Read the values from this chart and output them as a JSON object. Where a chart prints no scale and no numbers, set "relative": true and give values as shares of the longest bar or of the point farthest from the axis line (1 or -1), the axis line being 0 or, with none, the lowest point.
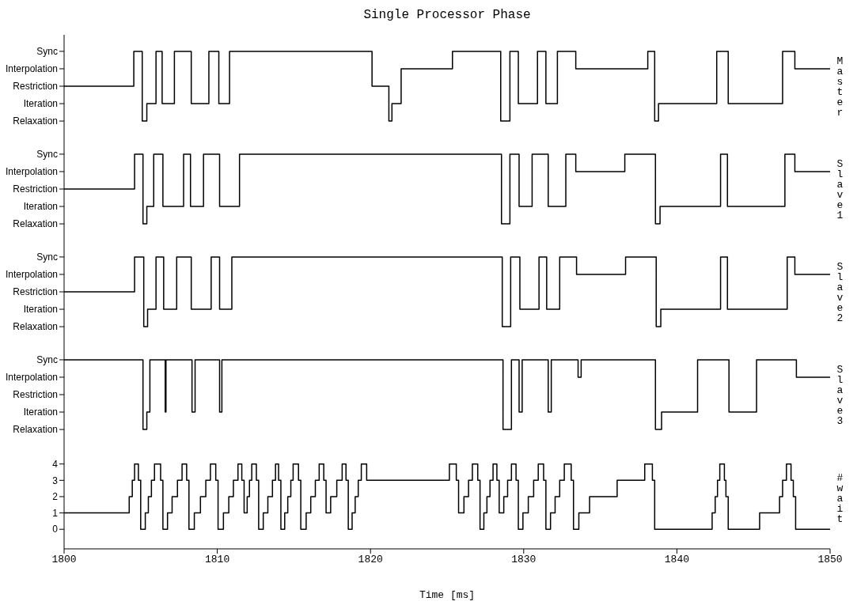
{
  "chart_data": [
    {
      "type": "step",
      "title": "Single Processor Phase",
      "ylabel": "Master",
      "tick_labels": "y",
      "xlim": [
        1800,
        1850
      ],
      "xticks": [
        1800,
        1810,
        1820,
        1830,
        1840,
        1850
      ],
      "relative": true,
      "y_categories": [
        "Sync",
        "Interpolation",
        "Restriction",
        "Iteration",
        "Relaxation"
      ],
      "x": [
        1800,
        1804.55,
        1805.1,
        1805.4,
        1806.0,
        1806.4,
        1807.2,
        1808.3,
        1809.45,
        1810.1,
        1810.8,
        1820.1,
        1821.2,
        1821.4,
        1822.0,
        1825.35,
        1828.5,
        1829.1,
        1829.65,
        1830.9,
        1831.45,
        1832.2,
        1833.4,
        1838.1,
        1838.55,
        1838.8,
        1842.6,
        1843.35,
        1846.9,
        1847.7,
        1850
      ],
      "series": [
        {
          "color": "#000000",
          "values": [
            0.5,
            1,
            0,
            0.25,
            1,
            0.25,
            1,
            0.25,
            1,
            0.25,
            1,
            0.5,
            0,
            0.25,
            0.75,
            1,
            0,
            1,
            0.25,
            1,
            0.25,
            1,
            0.75,
            1,
            0,
            0.25,
            1,
            0.25,
            1,
            0.75,
            0.75
          ]
        }
      ]
    },
    {
      "type": "step",
      "ylabel": "Slave1",
      "tick_labels": "y",
      "xlim": [
        1800,
        1850
      ],
      "xticks": [
        1800,
        1810,
        1820,
        1830,
        1840,
        1850
      ],
      "relative": true,
      "y_categories": [
        "Sync",
        "Interpolation",
        "Restriction",
        "Iteration",
        "Relaxation"
      ],
      "x": [
        1800,
        1804.6,
        1805.15,
        1805.4,
        1805.85,
        1806.45,
        1807.8,
        1808.25,
        1809.1,
        1810.15,
        1811.45,
        1828.55,
        1829.1,
        1829.7,
        1830.55,
        1831.6,
        1832.75,
        1833.4,
        1836.6,
        1838.6,
        1838.9,
        1842.85,
        1843.3,
        1847.05,
        1847.7,
        1850
      ],
      "series": [
        {
          "color": "#000000",
          "values": [
            0.5,
            1,
            0,
            0.25,
            1,
            0.25,
            1,
            0.25,
            1,
            0.25,
            1,
            0,
            1,
            0.25,
            1,
            0.25,
            1,
            0.75,
            1,
            0,
            0.25,
            1,
            0.25,
            1,
            0.75,
            0.75
          ]
        }
      ]
    },
    {
      "type": "step",
      "ylabel": "Slave2",
      "tick_labels": "y",
      "xlim": [
        1800,
        1850
      ],
      "xticks": [
        1800,
        1810,
        1820,
        1830,
        1840,
        1850
      ],
      "relative": true,
      "y_categories": [
        "Sync",
        "Interpolation",
        "Restriction",
        "Iteration",
        "Relaxation"
      ],
      "x": [
        1800,
        1804.6,
        1805.2,
        1805.45,
        1806.0,
        1806.5,
        1807.35,
        1808.3,
        1809.6,
        1810.15,
        1810.95,
        1828.6,
        1829.15,
        1829.75,
        1831.0,
        1831.5,
        1832.35,
        1833.45,
        1836.65,
        1838.65,
        1838.95,
        1842.85,
        1843.3,
        1847.2,
        1847.7,
        1850
      ],
      "series": [
        {
          "color": "#000000",
          "values": [
            0.5,
            1,
            0,
            0.25,
            1,
            0.25,
            1,
            0.25,
            1,
            0.25,
            1,
            0,
            1,
            0.25,
            1,
            0.25,
            1,
            0.75,
            1,
            0,
            0.25,
            1,
            0.25,
            1,
            0.75,
            0.75
          ]
        }
      ]
    },
    {
      "type": "step",
      "ylabel": "Slave3",
      "tick_labels": "y",
      "xlim": [
        1800,
        1850
      ],
      "xticks": [
        1800,
        1810,
        1820,
        1830,
        1840,
        1850
      ],
      "relative": true,
      "y_categories": [
        "Sync",
        "Interpolation",
        "Restriction",
        "Iteration",
        "Relaxation"
      ],
      "x": [
        1800,
        1805.15,
        1805.4,
        1805.6,
        1806.6,
        1806.65,
        1808.35,
        1808.55,
        1810.15,
        1810.3,
        1828.65,
        1829.2,
        1829.7,
        1829.9,
        1831.6,
        1831.8,
        1833.55,
        1833.75,
        1838.6,
        1839.0,
        1841.35,
        1843.4,
        1845.2,
        1847.8,
        1850
      ],
      "series": [
        {
          "color": "#000000",
          "values": [
            1,
            0,
            0.25,
            1,
            0.25,
            1,
            0.25,
            1,
            0.25,
            1,
            0,
            1,
            0.25,
            1,
            0.25,
            1,
            0.75,
            1,
            0,
            0.25,
            1,
            0.25,
            1,
            0.75,
            0.75
          ]
        }
      ]
    },
    {
      "type": "step",
      "ylabel": "#wait",
      "xlabel": "Time [ms]",
      "xlim": [
        1800,
        1850
      ],
      "xticks": [
        1800,
        1810,
        1820,
        1830,
        1840,
        1850
      ],
      "ylim": [
        -1.2,
        5.1
      ],
      "yticks": [
        0,
        1,
        2,
        3,
        4
      ],
      "x": [
        1800,
        1804.25,
        1804.45,
        1804.6,
        1804.85,
        1805.0,
        1805.3,
        1805.5,
        1805.7,
        1805.9,
        1806.3,
        1806.45,
        1806.75,
        1807.05,
        1807.4,
        1807.7,
        1808.0,
        1808.15,
        1808.5,
        1808.9,
        1809.25,
        1809.55,
        1809.9,
        1810.05,
        1810.4,
        1810.75,
        1811.05,
        1811.35,
        1811.6,
        1811.75,
        1811.95,
        1812.1,
        1812.25,
        1812.55,
        1812.7,
        1813.0,
        1813.3,
        1813.6,
        1813.8,
        1814.0,
        1814.15,
        1814.4,
        1814.6,
        1814.8,
        1814.95,
        1815.3,
        1815.45,
        1815.8,
        1816.1,
        1816.4,
        1816.65,
        1816.95,
        1817.1,
        1817.4,
        1817.8,
        1818.15,
        1818.4,
        1818.55,
        1818.8,
        1819.0,
        1819.2,
        1819.4,
        1819.75,
        1825.15,
        1825.6,
        1825.75,
        1826.1,
        1826.4,
        1826.65,
        1827.0,
        1827.15,
        1827.4,
        1827.6,
        1827.8,
        1828.0,
        1828.25,
        1828.4,
        1828.7,
        1828.95,
        1829.2,
        1829.5,
        1829.65,
        1829.95,
        1830.3,
        1830.65,
        1830.95,
        1831.3,
        1831.45,
        1831.75,
        1832.05,
        1832.35,
        1832.65,
        1833.1,
        1833.25,
        1833.6,
        1834.3,
        1836.1,
        1837.9,
        1838.4,
        1838.55,
        1842.3,
        1842.5,
        1842.65,
        1842.8,
        1843.1,
        1843.2,
        1843.35,
        1845.4,
        1846.7,
        1846.9,
        1847.15,
        1847.45,
        1847.6,
        1847.75,
        1850
      ],
      "series": [
        {
          "color": "#000000",
          "values": [
            1,
            2,
            3,
            4,
            3,
            0,
            1,
            2,
            3,
            4,
            3,
            0,
            1,
            2,
            3,
            4,
            3,
            0,
            1,
            2,
            3,
            4,
            3,
            0,
            1,
            2,
            3,
            4,
            3,
            1,
            2,
            3,
            4,
            3,
            0,
            1,
            2,
            3,
            4,
            3,
            0,
            1,
            2,
            3,
            4,
            3,
            0,
            1,
            2,
            3,
            4,
            3,
            1,
            2,
            3,
            4,
            3,
            0,
            1,
            2,
            3,
            4,
            3,
            4,
            3,
            1,
            2,
            3,
            4,
            3,
            0,
            1,
            2,
            3,
            4,
            3,
            1,
            2,
            3,
            4,
            3,
            0,
            1,
            2,
            3,
            4,
            3,
            0,
            1,
            2,
            3,
            4,
            3,
            0,
            1,
            2,
            3,
            4,
            3,
            0,
            1,
            2,
            3,
            4,
            3,
            2,
            0,
            1,
            2,
            3,
            4,
            3,
            2,
            0,
            0
          ]
        }
      ]
    }
  ]
}
